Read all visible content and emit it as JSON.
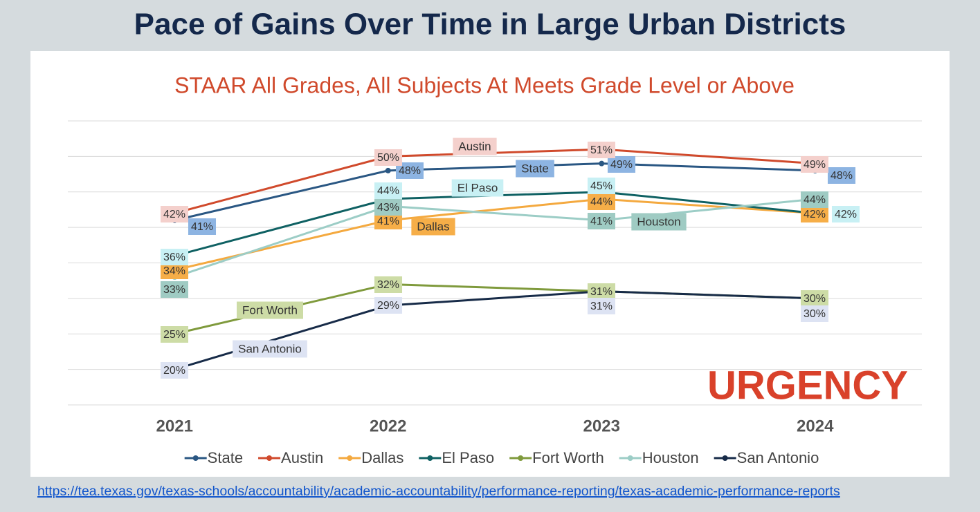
{
  "title": "Pace of Gains Over Time in Large Urban Districts",
  "stamp": "URGENCY",
  "link": "https://tea.texas.gov/texas-schools/accountability/academic-accountability/performance-reporting/texas-academic-performance-reports",
  "chart_data": {
    "type": "line",
    "title": "STAAR All Grades, All Subjects At Meets Grade Level or Above",
    "categories": [
      "2021",
      "2022",
      "2023",
      "2024"
    ],
    "ylim": [
      15,
      55
    ],
    "yticks": [
      15,
      20,
      25,
      30,
      35,
      40,
      45,
      50,
      55
    ],
    "grid": true,
    "legend": "bottom",
    "series": [
      {
        "name": "State",
        "color": "#2a5783",
        "label_fill": "#8db4e2",
        "values": [
          41,
          48,
          49,
          48
        ],
        "value_labels": [
          "41%",
          "48%",
          "49%",
          "48%"
        ]
      },
      {
        "name": "Austin",
        "color": "#d04a2c",
        "label_fill": "#f4d0cc",
        "values": [
          42,
          50,
          51,
          49
        ],
        "value_labels": [
          "42%",
          "50%",
          "51%",
          "49%"
        ]
      },
      {
        "name": "Dallas",
        "color": "#f4a93f",
        "label_fill": "#f6ae48",
        "values": [
          34,
          41,
          44,
          42
        ],
        "value_labels": [
          "34%",
          "41%",
          "44%",
          "42%"
        ]
      },
      {
        "name": "El Paso",
        "color": "#0f6163",
        "label_fill": "#c8f0f4",
        "values": [
          36,
          44,
          45,
          42
        ],
        "value_labels": [
          "36%",
          "44%",
          "45%",
          "42%"
        ]
      },
      {
        "name": "Fort Worth",
        "color": "#7f9a3c",
        "label_fill": "#cddca6",
        "values": [
          25,
          32,
          31,
          30
        ],
        "value_labels": [
          "25%",
          "32%",
          "31%",
          "30%"
        ]
      },
      {
        "name": "Houston",
        "color": "#9ccdc6",
        "label_fill": "#9fcbc3",
        "values": [
          33,
          43,
          41,
          44
        ],
        "value_labels": [
          "33%",
          "43%",
          "41%",
          "44%"
        ]
      },
      {
        "name": "San Antonio",
        "color": "#172b48",
        "label_fill": "#dde3f3",
        "values": [
          20,
          29,
          31,
          30
        ],
        "value_labels": [
          "20%",
          "29%",
          "31%",
          "30%"
        ]
      }
    ]
  }
}
